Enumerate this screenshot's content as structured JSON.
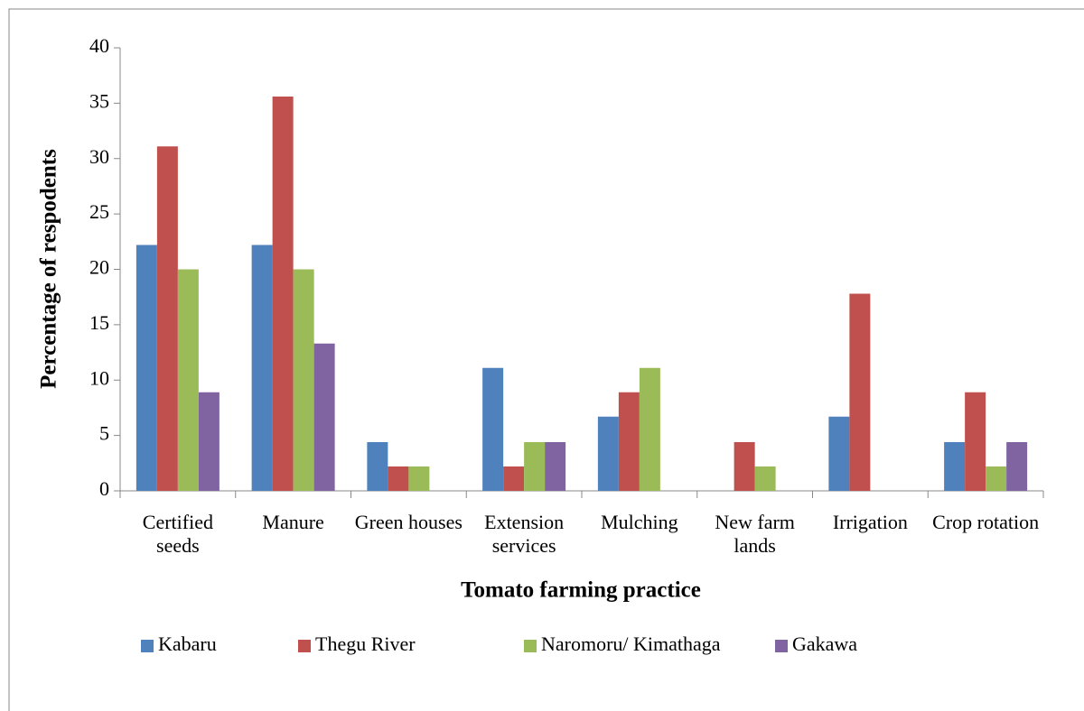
{
  "chart_data": {
    "type": "bar",
    "x_label": "Tomato farming practice",
    "y_label": "Percentage of respodents",
    "categories": [
      "Certified seeds",
      "Manure",
      "Green houses",
      "Extension services",
      "Mulching",
      "New farm lands",
      "Irrigation",
      "Crop rotation"
    ],
    "series": [
      {
        "name": "Kabaru",
        "color": "#4f81bd",
        "values": [
          22.2,
          22.2,
          4.4,
          11.1,
          6.7,
          0,
          6.7,
          4.4
        ]
      },
      {
        "name": "Thegu River",
        "color": "#c0504d",
        "values": [
          31.1,
          35.6,
          2.2,
          2.2,
          8.9,
          4.4,
          17.8,
          8.9
        ]
      },
      {
        "name": "Naromoru/ Kimathaga",
        "color": "#9bbb59",
        "values": [
          20,
          20,
          2.2,
          4.4,
          11.1,
          2.2,
          0,
          2.2
        ]
      },
      {
        "name": "Gakawa",
        "color": "#8064a2",
        "values": [
          8.9,
          13.3,
          0,
          4.4,
          0,
          0,
          0,
          4.4
        ]
      }
    ],
    "ylim": [
      0,
      40
    ],
    "yticks": [
      0,
      5,
      10,
      15,
      20,
      25,
      30,
      35,
      40
    ],
    "grid": false,
    "legend": "bottom"
  }
}
